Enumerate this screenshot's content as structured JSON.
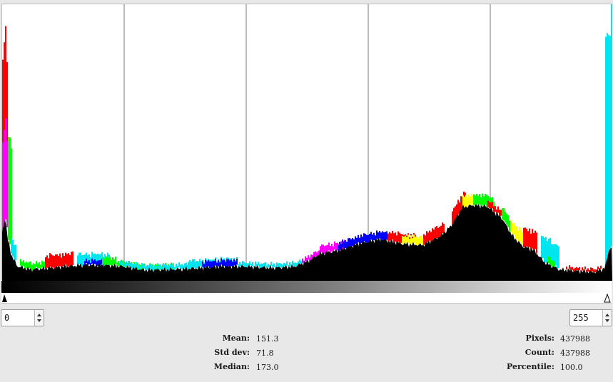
{
  "histogram": {
    "channels": [
      {
        "name": "red",
        "color": "#ff0000"
      },
      {
        "name": "green",
        "color": "#00ff00"
      },
      {
        "name": "blue",
        "color": "#0000ff"
      },
      {
        "name": "cyan",
        "color": "#00e5f0"
      },
      {
        "name": "magenta",
        "color": "#ff00ff"
      },
      {
        "name": "yellow",
        "color": "#ffff00"
      },
      {
        "name": "value",
        "color": "#000000"
      }
    ],
    "x_range": [
      0,
      255
    ]
  },
  "range": {
    "start": "0",
    "end": "255"
  },
  "stats": {
    "mean_label": "Mean:",
    "mean": "151.3",
    "stddev_label": "Std dev:",
    "stddev": "71.8",
    "median_label": "Median:",
    "median": "173.0",
    "pixels_label": "Pixels:",
    "pixels": "437988",
    "count_label": "Count:",
    "count": "437988",
    "percentile_label": "Percentile:",
    "percentile": "100.0"
  }
}
